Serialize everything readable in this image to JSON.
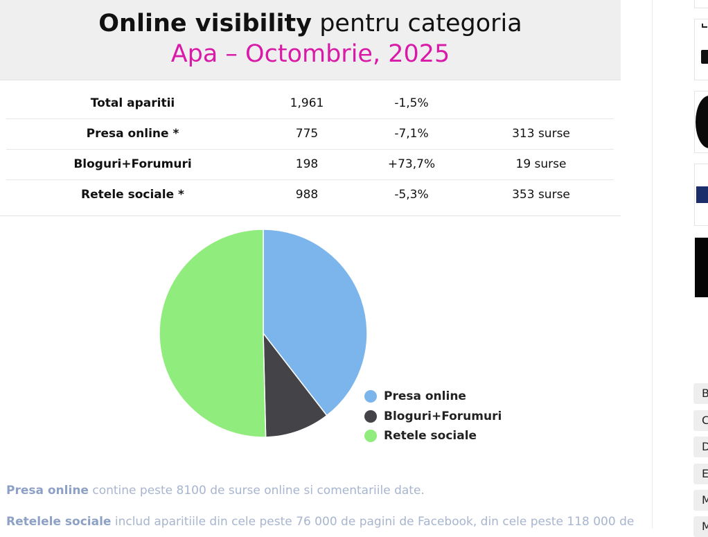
{
  "header": {
    "title_bold": "Online visibility",
    "title_rest": "pentru categoria",
    "subtitle": "Apa – Octombrie, 2025"
  },
  "stats_rows": [
    {
      "label": "Total aparitii",
      "count": "1,961",
      "change": "-1,5%",
      "sources": ""
    },
    {
      "label": "Presa online *",
      "count": "775",
      "change": "-7,1%",
      "sources": "313 surse"
    },
    {
      "label": "Bloguri+Forumuri",
      "count": "198",
      "change": "+73,7%",
      "sources": "19 surse"
    },
    {
      "label": "Retele sociale *",
      "count": "988",
      "change": "-5,3%",
      "sources": "353 surse"
    }
  ],
  "chart_data": {
    "type": "pie",
    "categories": [
      "Presa online",
      "Bloguri+Forumuri",
      "Retele sociale"
    ],
    "values": [
      775,
      198,
      988
    ],
    "colors": [
      "#7cb5ec",
      "#434348",
      "#90ed7d"
    ],
    "legend": "bottom-right"
  },
  "notes": [
    {
      "bold": "Presa online",
      "text": " contine peste 8100 de surse online si comentariile date."
    },
    {
      "bold": "Retelele sociale",
      "text": " includ aparitiile din cele peste 76 000 de pagini de Facebook, din cele peste 118 000 de"
    }
  ],
  "sidebar": {
    "tags": [
      "B",
      "C",
      "D",
      "E",
      "M",
      "M"
    ]
  }
}
